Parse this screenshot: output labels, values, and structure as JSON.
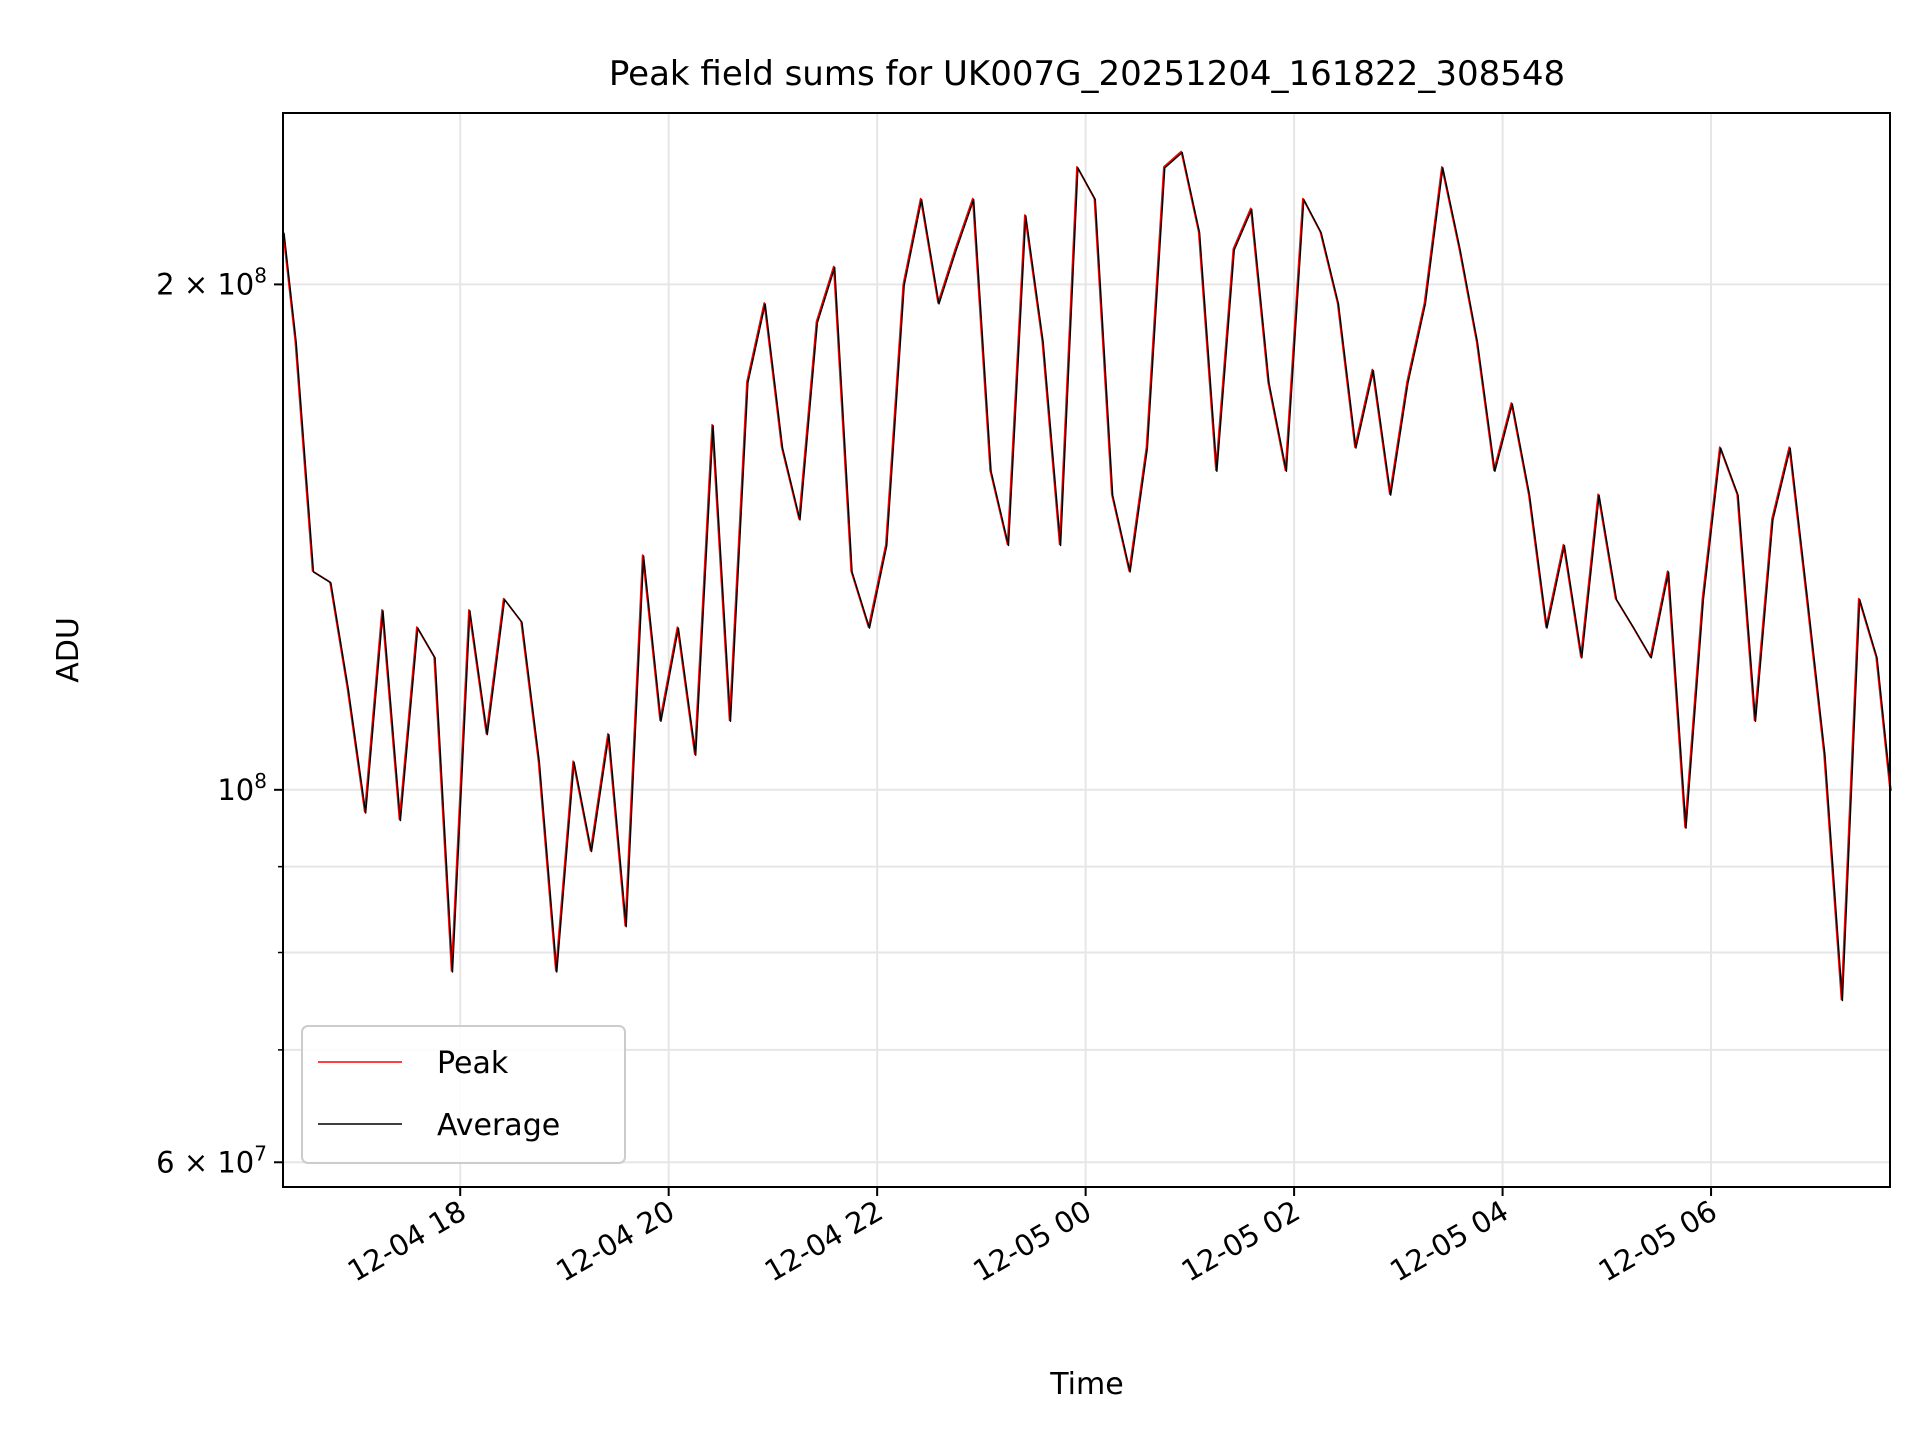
{
  "chart_data": {
    "type": "line",
    "title": "Peak field sums for UK007G_20251204_161822_308548",
    "xlabel": "Time",
    "ylabel": "ADU",
    "y_scale": "log",
    "ylim": [
      58000000,
      253000000
    ],
    "xlim": [
      "2025-12-04 16:18",
      "2025-12-05 07:43"
    ],
    "grid": true,
    "legend_position": "lower-left",
    "x_ticks": [
      {
        "value": "2025-12-04 18:00",
        "label": "12-04 18"
      },
      {
        "value": "2025-12-04 20:00",
        "label": "12-04 20"
      },
      {
        "value": "2025-12-04 22:00",
        "label": "12-04 22"
      },
      {
        "value": "2025-12-05 00:00",
        "label": "12-05 00"
      },
      {
        "value": "2025-12-05 02:00",
        "label": "12-05 02"
      },
      {
        "value": "2025-12-05 04:00",
        "label": "12-05 04"
      },
      {
        "value": "2025-12-05 06:00",
        "label": "12-05 06"
      }
    ],
    "y_ticks_major": [
      {
        "value": 60000000,
        "base": "6 × 10",
        "exp": "7"
      },
      {
        "value": 100000000,
        "base": "10",
        "exp": "8"
      },
      {
        "value": 200000000,
        "base": "2 × 10",
        "exp": "8"
      }
    ],
    "y_ticks_minor": [
      70000000,
      80000000,
      90000000,
      300000000
    ],
    "series": [
      {
        "name": "Peak",
        "color": "#ff0000",
        "x": [
          "2025-12-04 16:18",
          "2025-12-04 16:25",
          "2025-12-04 16:35",
          "2025-12-04 16:45",
          "2025-12-04 16:55",
          "2025-12-04 17:05",
          "2025-12-04 17:15",
          "2025-12-04 17:25",
          "2025-12-04 17:35",
          "2025-12-04 17:45",
          "2025-12-04 17:55",
          "2025-12-04 18:05",
          "2025-12-04 18:15",
          "2025-12-04 18:25",
          "2025-12-04 18:35",
          "2025-12-04 18:45",
          "2025-12-04 18:55",
          "2025-12-04 19:05",
          "2025-12-04 19:15",
          "2025-12-04 19:25",
          "2025-12-04 19:35",
          "2025-12-04 19:45",
          "2025-12-04 19:55",
          "2025-12-04 20:05",
          "2025-12-04 20:15",
          "2025-12-04 20:25",
          "2025-12-04 20:35",
          "2025-12-04 20:45",
          "2025-12-04 20:55",
          "2025-12-04 21:05",
          "2025-12-04 21:15",
          "2025-12-04 21:25",
          "2025-12-04 21:35",
          "2025-12-04 21:45",
          "2025-12-04 21:55",
          "2025-12-04 22:05",
          "2025-12-04 22:15",
          "2025-12-04 22:25",
          "2025-12-04 22:35",
          "2025-12-04 22:45",
          "2025-12-04 22:55",
          "2025-12-04 23:05",
          "2025-12-04 23:15",
          "2025-12-04 23:25",
          "2025-12-04 23:35",
          "2025-12-04 23:45",
          "2025-12-04 23:55",
          "2025-12-05 00:05",
          "2025-12-05 00:15",
          "2025-12-05 00:25",
          "2025-12-05 00:35",
          "2025-12-05 00:45",
          "2025-12-05 00:55",
          "2025-12-05 01:05",
          "2025-12-05 01:15",
          "2025-12-05 01:25",
          "2025-12-05 01:35",
          "2025-12-05 01:45",
          "2025-12-05 01:55",
          "2025-12-05 02:05",
          "2025-12-05 02:15",
          "2025-12-05 02:25",
          "2025-12-05 02:35",
          "2025-12-05 02:45",
          "2025-12-05 02:55",
          "2025-12-05 03:05",
          "2025-12-05 03:15",
          "2025-12-05 03:25",
          "2025-12-05 03:35",
          "2025-12-05 03:45",
          "2025-12-05 03:55",
          "2025-12-05 04:05",
          "2025-12-05 04:15",
          "2025-12-05 04:25",
          "2025-12-05 04:35",
          "2025-12-05 04:45",
          "2025-12-05 04:55",
          "2025-12-05 05:05",
          "2025-12-05 05:15",
          "2025-12-05 05:25",
          "2025-12-05 05:35",
          "2025-12-05 05:45",
          "2025-12-05 05:55",
          "2025-12-05 06:05",
          "2025-12-05 06:15",
          "2025-12-05 06:25",
          "2025-12-05 06:35",
          "2025-12-05 06:45",
          "2025-12-05 06:55",
          "2025-12-05 07:05",
          "2025-12-05 07:15",
          "2025-12-05 07:25",
          "2025-12-05 07:35",
          "2025-12-05 07:43"
        ],
        "values": [
          215000000,
          185000000,
          135000000,
          133000000,
          115000000,
          97000000,
          128000000,
          96000000,
          125000000,
          120000000,
          78000000,
          128000000,
          108000000,
          130000000,
          126000000,
          104000000,
          78000000,
          104000000,
          92000000,
          108000000,
          83000000,
          138000000,
          110000000,
          125000000,
          105000000,
          165000000,
          110000000,
          175000000,
          195000000,
          160000000,
          145000000,
          190000000,
          205000000,
          135000000,
          125000000,
          140000000,
          200000000,
          225000000,
          195000000,
          210000000,
          225000000,
          155000000,
          140000000,
          220000000,
          185000000,
          140000000,
          235000000,
          225000000,
          150000000,
          135000000,
          160000000,
          235000000,
          240000000,
          215000000,
          155000000,
          210000000,
          222000000,
          175000000,
          155000000,
          225000000,
          215000000,
          195000000,
          160000000,
          178000000,
          150000000,
          175000000,
          195000000,
          235000000,
          210000000,
          185000000,
          155000000,
          170000000,
          150000000,
          125000000,
          140000000,
          120000000,
          150000000,
          130000000,
          125000000,
          120000000,
          135000000,
          95000000,
          130000000,
          160000000,
          150000000,
          110000000,
          145000000,
          160000000,
          130000000,
          105000000,
          75000000,
          130000000,
          120000000,
          100000000
        ],
        "note": ""
      },
      {
        "name": "Average",
        "color": "#000000"
      }
    ]
  },
  "legend": [
    {
      "label": "Peak",
      "color": "#ff0000"
    },
    {
      "label": "Average",
      "color": "#000000"
    }
  ]
}
